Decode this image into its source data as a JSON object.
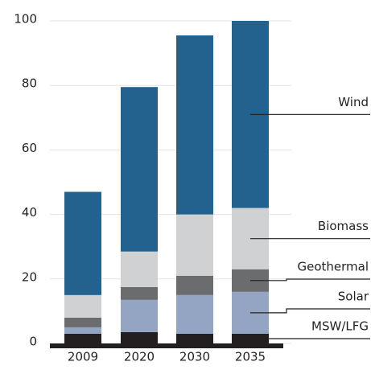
{
  "chart_data": {
    "type": "bar",
    "stacked": true,
    "categories": [
      "2009",
      "2020",
      "2030",
      "2035"
    ],
    "series": [
      {
        "name": "MSW/LFG",
        "color": "#231f20",
        "values": [
          3,
          3.5,
          3,
          3
        ]
      },
      {
        "name": "Solar",
        "color": "#93a5c3",
        "values": [
          2,
          10,
          12,
          13
        ]
      },
      {
        "name": "Geothermal",
        "color": "#6b6c6e",
        "values": [
          3,
          4,
          6,
          7
        ]
      },
      {
        "name": "Biomass",
        "color": "#d0d1d3",
        "values": [
          7,
          11,
          19,
          19
        ]
      },
      {
        "name": "Wind",
        "color": "#23628f",
        "values": [
          32,
          51,
          55.5,
          58
        ]
      }
    ],
    "ylim": [
      0,
      100
    ],
    "yticks": [
      0,
      20,
      40,
      60,
      80,
      100
    ],
    "grid": true,
    "legend": "right"
  }
}
